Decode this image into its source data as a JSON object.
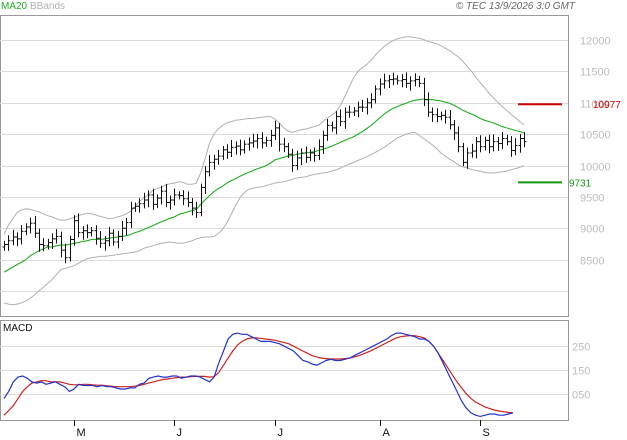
{
  "header": {
    "legend_ma": "MA20",
    "legend_bb": "BBands",
    "copyright": "© TEC 13/9/2026 3:0 GMT"
  },
  "colors": {
    "ohlc": "#111111",
    "ma20": "#22aa22",
    "bbands": "#b0b0b0",
    "macd_line": "#2233cc",
    "signal_line": "#cc2222",
    "resistance": "#cc0000",
    "support": "#119911",
    "grid": "#dcdcdc",
    "frame": "#999999"
  },
  "chart_data": [
    {
      "type": "ohlc",
      "title": "",
      "ylim": [
        7600,
        12400
      ],
      "ytick_labels": [
        "12000",
        "11500",
        "11000",
        "10500",
        "10000",
        "9500",
        "9000",
        "8500"
      ],
      "ytick_values": [
        12000,
        11500,
        11000,
        10500,
        10000,
        9500,
        9000,
        8500
      ],
      "xtick_labels": [
        "M",
        "J",
        "J",
        "A",
        "S"
      ],
      "xtick_bar_index": [
        16,
        39,
        62,
        86,
        109
      ],
      "close": [
        8740,
        8800,
        8860,
        8830,
        8950,
        9020,
        9080,
        8920,
        8740,
        8720,
        8770,
        8830,
        8870,
        8650,
        8530,
        8820,
        9120,
        8930,
        8960,
        8930,
        8960,
        8840,
        8760,
        8800,
        8920,
        8780,
        8870,
        9000,
        9090,
        9320,
        9350,
        9390,
        9450,
        9530,
        9380,
        9480,
        9590,
        9410,
        9450,
        9530,
        9520,
        9470,
        9410,
        9320,
        9250,
        9650,
        9900,
        10050,
        10100,
        10150,
        10250,
        10210,
        10290,
        10310,
        10250,
        10340,
        10360,
        10390,
        10430,
        10360,
        10400,
        10480,
        10600,
        10340,
        10300,
        10180,
        10000,
        10120,
        10200,
        10130,
        10200,
        10160,
        10300,
        10480,
        10640,
        10600,
        10780,
        10700,
        10850,
        10850,
        10870,
        10930,
        10930,
        11000,
        11050,
        11220,
        11300,
        11350,
        11370,
        11380,
        11350,
        11370,
        11310,
        11350,
        11370,
        11310,
        11050,
        10850,
        10810,
        10780,
        10800,
        10770,
        10650,
        10520,
        10300,
        10050,
        10200,
        10230,
        10380,
        10300,
        10400,
        10300,
        10380,
        10350,
        10430,
        10380,
        10240,
        10320,
        10430,
        10380
      ],
      "ma20": [
        8300,
        8340,
        8380,
        8420,
        8460,
        8500,
        8560,
        8600,
        8640,
        8670,
        8700,
        8700,
        8720,
        8730,
        8730,
        8740,
        8760,
        8770,
        8790,
        8800,
        8820,
        8820,
        8820,
        8830,
        8840,
        8850,
        8860,
        8870,
        8880,
        8900,
        8930,
        8950,
        8980,
        9010,
        9040,
        9070,
        9100,
        9130,
        9160,
        9180,
        9220,
        9240,
        9260,
        9280,
        9300,
        9380,
        9450,
        9520,
        9580,
        9630,
        9670,
        9720,
        9760,
        9790,
        9830,
        9860,
        9890,
        9920,
        9950,
        9970,
        10000,
        10040,
        10090,
        10110,
        10130,
        10150,
        10160,
        10180,
        10190,
        10200,
        10210,
        10220,
        10240,
        10260,
        10280,
        10310,
        10340,
        10370,
        10400,
        10430,
        10460,
        10500,
        10540,
        10590,
        10640,
        10700,
        10760,
        10820,
        10870,
        10910,
        10940,
        10970,
        10990,
        11020,
        11040,
        11050,
        11060,
        11050,
        11050,
        11040,
        11030,
        11010,
        10990,
        10960,
        10920,
        10880,
        10850,
        10820,
        10790,
        10750,
        10720,
        10700,
        10680,
        10650,
        10620,
        10600,
        10580,
        10560,
        10540,
        10520
      ],
      "bb_upper": [
        8900,
        9050,
        9150,
        9250,
        9290,
        9310,
        9300,
        9280,
        9260,
        9230,
        9200,
        9180,
        9150,
        9130,
        9130,
        9150,
        9170,
        9200,
        9220,
        9240,
        9230,
        9210,
        9190,
        9170,
        9150,
        9160,
        9180,
        9200,
        9230,
        9270,
        9350,
        9430,
        9480,
        9540,
        9600,
        9630,
        9650,
        9690,
        9710,
        9720,
        9740,
        9730,
        9700,
        9700,
        9720,
        9880,
        10100,
        10350,
        10500,
        10580,
        10640,
        10680,
        10700,
        10720,
        10730,
        10740,
        10750,
        10750,
        10760,
        10770,
        10780,
        10780,
        10740,
        10680,
        10600,
        10550,
        10530,
        10550,
        10570,
        10580,
        10600,
        10620,
        10640,
        10700,
        10760,
        10800,
        10860,
        10960,
        11100,
        11250,
        11400,
        11500,
        11560,
        11610,
        11680,
        11760,
        11830,
        11900,
        11950,
        11990,
        12020,
        12040,
        12050,
        12050,
        12040,
        12030,
        12010,
        11980,
        11960,
        11940,
        11910,
        11870,
        11830,
        11780,
        11730,
        11660,
        11580,
        11500,
        11400,
        11320,
        11240,
        11150,
        11080,
        11010,
        10940,
        10880,
        10820,
        10760,
        10700,
        10650
      ],
      "bb_lower": [
        7810,
        7790,
        7780,
        7790,
        7810,
        7840,
        7880,
        7940,
        8000,
        8060,
        8120,
        8180,
        8260,
        8340,
        8360,
        8380,
        8400,
        8440,
        8480,
        8510,
        8530,
        8540,
        8550,
        8550,
        8560,
        8570,
        8580,
        8590,
        8600,
        8610,
        8620,
        8640,
        8680,
        8700,
        8720,
        8740,
        8760,
        8770,
        8780,
        8770,
        8760,
        8760,
        8780,
        8800,
        8830,
        8850,
        8860,
        8860,
        8870,
        8910,
        8980,
        9090,
        9220,
        9360,
        9490,
        9570,
        9620,
        9640,
        9650,
        9660,
        9680,
        9700,
        9720,
        9730,
        9740,
        9760,
        9780,
        9800,
        9810,
        9820,
        9840,
        9860,
        9870,
        9880,
        9890,
        9910,
        9930,
        9960,
        9990,
        10020,
        10050,
        10080,
        10110,
        10140,
        10170,
        10210,
        10250,
        10290,
        10340,
        10390,
        10440,
        10470,
        10500,
        10520,
        10530,
        10480,
        10430,
        10380,
        10330,
        10270,
        10200,
        10150,
        10100,
        10060,
        10010,
        9980,
        9960,
        9940,
        9920,
        9910,
        9890,
        9880,
        9880,
        9890,
        9900,
        9910,
        9930,
        9950,
        9970,
        10000
      ],
      "resistance": {
        "value": 10977,
        "label": "10977"
      },
      "support": {
        "value": 9731,
        "label": "9731"
      }
    },
    {
      "type": "line",
      "title": "MACD",
      "ylim": [
        -60,
        360
      ],
      "ytick_labels": [
        "250",
        "150",
        "050"
      ],
      "ytick_values": [
        250,
        150,
        50
      ],
      "series": [
        {
          "values": [
            30,
            60,
            100,
            120,
            125,
            115,
            100,
            95,
            100,
            90,
            95,
            100,
            90,
            80,
            60,
            70,
            90,
            85,
            85,
            85,
            80,
            85,
            80,
            80,
            75,
            70,
            70,
            75,
            75,
            90,
            95,
            115,
            120,
            125,
            120,
            120,
            125,
            125,
            115,
            120,
            125,
            125,
            120,
            110,
            100,
            120,
            180,
            230,
            280,
            300,
            305,
            300,
            300,
            290,
            280,
            270,
            270,
            270,
            265,
            260,
            250,
            240,
            230,
            210,
            190,
            185,
            175,
            170,
            180,
            190,
            195,
            190,
            190,
            195,
            200,
            210,
            220,
            230,
            240,
            250,
            260,
            270,
            280,
            295,
            305,
            305,
            300,
            295,
            290,
            280,
            280,
            270,
            250,
            220,
            180,
            140,
            100,
            60,
            20,
            -10,
            -30,
            -40,
            -45,
            -40,
            -35,
            -35,
            -40,
            -40,
            -35,
            -30
          ]
        },
        {
          "values": [
            -40,
            -20,
            0,
            30,
            60,
            80,
            95,
            100,
            105,
            105,
            100,
            100,
            100,
            95,
            90,
            88,
            88,
            90,
            90,
            88,
            86,
            86,
            84,
            82,
            80,
            80,
            80,
            80,
            82,
            85,
            90,
            95,
            100,
            105,
            110,
            112,
            115,
            118,
            120,
            120,
            122,
            123,
            123,
            123,
            120,
            122,
            140,
            170,
            200,
            230,
            255,
            270,
            280,
            285,
            285,
            283,
            280,
            278,
            275,
            270,
            265,
            260,
            250,
            240,
            230,
            220,
            210,
            205,
            200,
            198,
            196,
            196,
            196,
            198,
            200,
            205,
            210,
            218,
            226,
            235,
            245,
            255,
            265,
            275,
            285,
            290,
            293,
            294,
            294,
            290,
            285,
            270,
            250,
            220,
            190,
            160,
            130,
            100,
            75,
            50,
            30,
            15,
            5,
            -5,
            -12,
            -18,
            -22,
            -25,
            -28,
            -30
          ]
        }
      ]
    }
  ]
}
